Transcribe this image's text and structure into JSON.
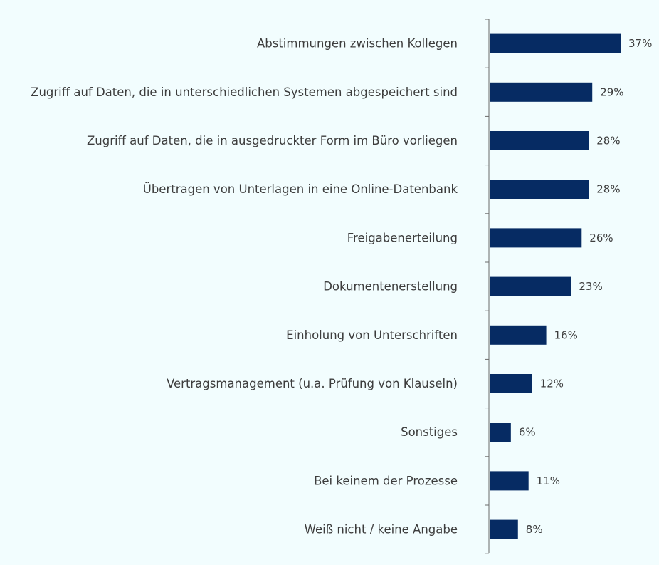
{
  "colors": {
    "background": "#f2fdfe",
    "bar": "#062b63",
    "axis": "#6b6b6b",
    "text": "#3d3d3d"
  },
  "chart_data": {
    "type": "bar",
    "orientation": "horizontal",
    "categories": [
      "Abstimmungen zwischen Kollegen",
      "Zugriff auf Daten, die in unterschiedlichen Systemen abgespeichert sind",
      "Zugriff auf Daten, die in ausgedruckter Form im Büro vorliegen",
      "Übertragen von Unterlagen in eine Online-Datenbank",
      "Freigabenerteilung",
      "Dokumentenerstellung",
      "Einholung von Unterschriften",
      "Vertragsmanagement (u.a. Prüfung von Klauseln)",
      "Sonstiges",
      "Bei keinem der Prozesse",
      "Weiß nicht / keine Angabe"
    ],
    "values": [
      37,
      29,
      28,
      28,
      26,
      23,
      16,
      12,
      6,
      11,
      8
    ],
    "value_labels": [
      "37%",
      "29%",
      "28%",
      "28%",
      "26%",
      "23%",
      "16%",
      "12%",
      "6%",
      "11%",
      "8%"
    ],
    "unit": "%",
    "grid": false,
    "legend": "none"
  }
}
